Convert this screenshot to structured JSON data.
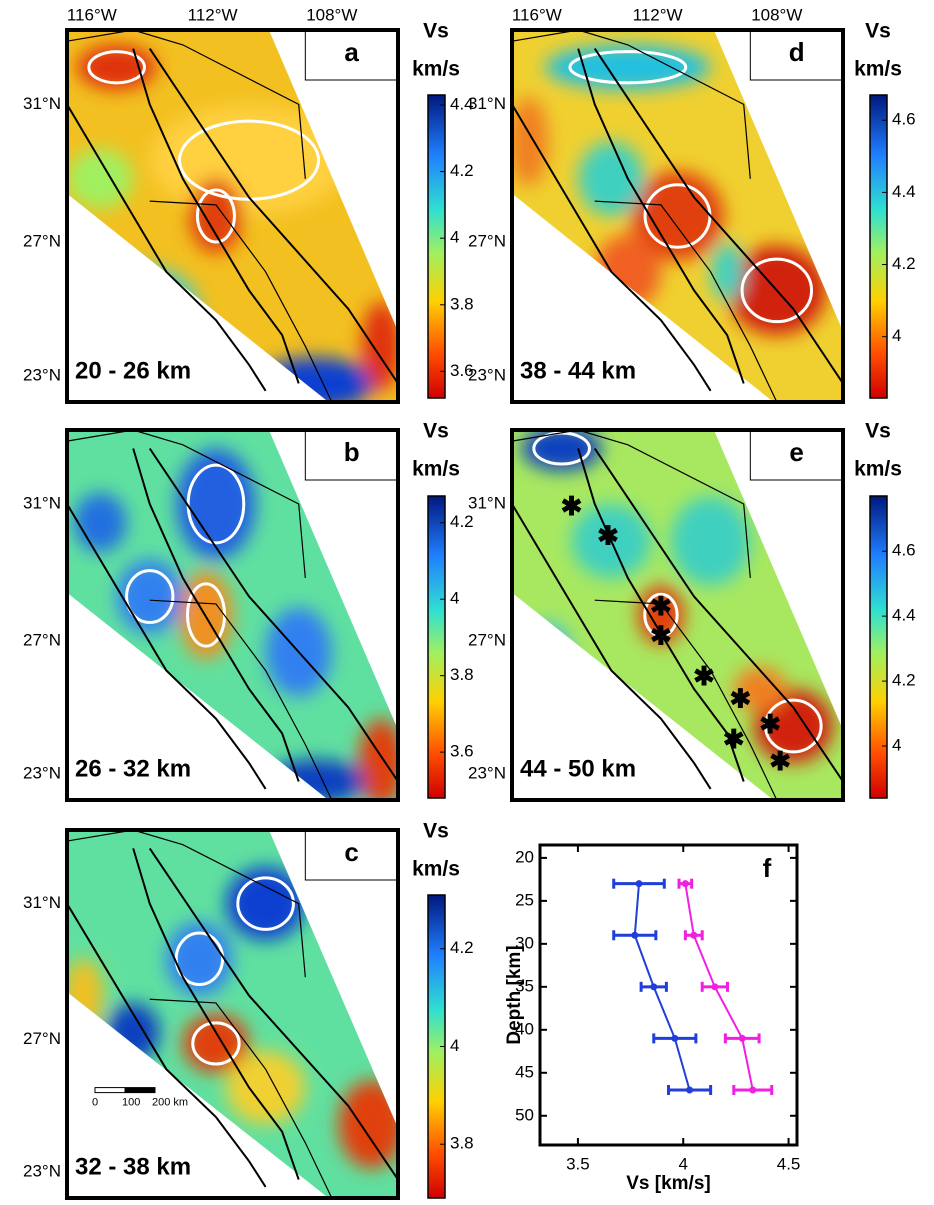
{
  "maps": [
    {
      "label": "a",
      "depth": "20 - 26 km",
      "lon_labels": [
        "116°W",
        "112°W",
        "108°W"
      ],
      "lat_labels": [
        "31°N",
        "27°N",
        "23°N"
      ],
      "colorbar": {
        "title": "Vs",
        "unit": "km/s",
        "clim": [
          3.52,
          4.43
        ],
        "ticks": [
          3.6,
          3.8,
          4,
          4.2,
          4.4
        ]
      }
    },
    {
      "label": "b",
      "depth": "26 - 32 km",
      "lat_labels": [
        "31°N",
        "27°N",
        "23°N"
      ],
      "colorbar": {
        "title": "Vs",
        "unit": "km/s",
        "clim": [
          3.48,
          4.27
        ],
        "ticks": [
          3.6,
          3.8,
          4,
          4.2
        ]
      }
    },
    {
      "label": "c",
      "depth": "32 - 38 km",
      "lat_labels": [
        "31°N",
        "27°N",
        "23°N"
      ],
      "scale_bar": [
        "0",
        "100",
        "200 km"
      ],
      "colorbar": {
        "title": "Vs",
        "unit": "km/s",
        "clim": [
          3.69,
          4.31
        ],
        "ticks": [
          3.8,
          4,
          4.2
        ]
      }
    },
    {
      "label": "d",
      "depth": "38 - 44 km",
      "lon_labels": [
        "116°W",
        "112°W",
        "108°W"
      ],
      "lat_labels": [
        "31°N",
        "27°N",
        "23°N"
      ],
      "colorbar": {
        "title": "Vs",
        "unit": "km/s",
        "clim": [
          3.83,
          4.67
        ],
        "ticks": [
          4,
          4.2,
          4.4,
          4.6
        ]
      }
    },
    {
      "label": "e",
      "depth": "44 - 50 km",
      "lat_labels": [
        "31°N",
        "27°N",
        "23°N"
      ],
      "colorbar": {
        "title": "Vs",
        "unit": "km/s",
        "clim": [
          3.84,
          4.77
        ],
        "ticks": [
          4,
          4.2,
          4.4,
          4.6
        ]
      }
    }
  ],
  "chart_data": {
    "type": "errorbar",
    "label": "f",
    "x_label": "Vs [km/s]",
    "y_label": "Depth [km]",
    "y": [
      23,
      29,
      35,
      41,
      47
    ],
    "series": [
      {
        "color": "#1f3fd8",
        "values": [
          3.79,
          3.77,
          3.86,
          3.96,
          4.03
        ],
        "errors": [
          0.12,
          0.1,
          0.06,
          0.1,
          0.1
        ]
      },
      {
        "color": "#f020e0",
        "values": [
          4.01,
          4.05,
          4.15,
          4.28,
          4.33
        ],
        "errors": [
          0.03,
          0.04,
          0.06,
          0.08,
          0.09
        ]
      }
    ],
    "xlim": [
      3.32,
      4.54
    ],
    "xticks": [
      3.5,
      4,
      4.5
    ],
    "ylim": [
      18.5,
      53.4
    ],
    "yticks": [
      20,
      25,
      30,
      35,
      40,
      45,
      50
    ],
    "y_inverted": true
  }
}
